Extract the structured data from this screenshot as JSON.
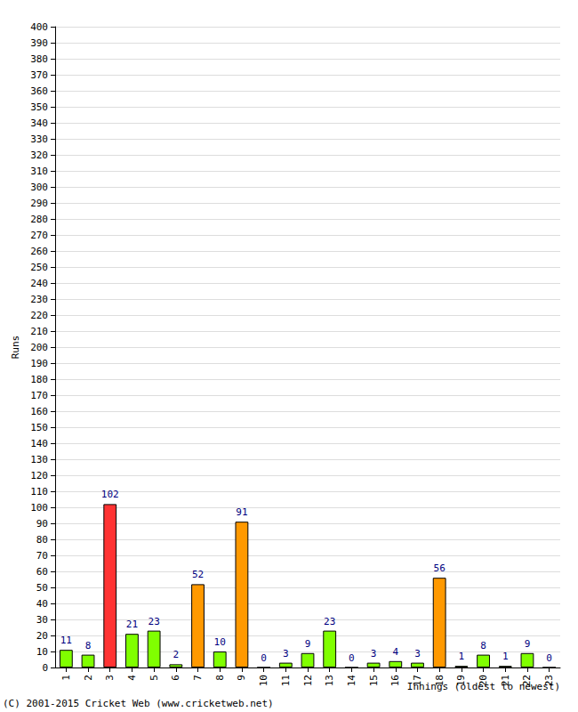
{
  "chart_data": {
    "type": "bar",
    "xlabel": "Innings (oldest to newest)",
    "ylabel": "Runs",
    "annotations": [
      "(C) 2001-2015 Cricket Web (www.cricketweb.net)"
    ],
    "categories": [
      "1",
      "2",
      "3",
      "4",
      "5",
      "6",
      "7",
      "8",
      "9",
      "10",
      "11",
      "12",
      "13",
      "14",
      "15",
      "16",
      "17",
      "18",
      "19",
      "20",
      "21",
      "22",
      "23"
    ],
    "values": [
      11,
      8,
      102,
      21,
      23,
      2,
      52,
      10,
      91,
      0,
      3,
      9,
      23,
      0,
      3,
      4,
      3,
      56,
      1,
      8,
      1,
      9,
      0
    ],
    "colors": [
      "#80ff00",
      "#80ff00",
      "#ff3333",
      "#80ff00",
      "#80ff00",
      "#80ff00",
      "#ff9900",
      "#80ff00",
      "#ff9900",
      "#80ff00",
      "#80ff00",
      "#80ff00",
      "#80ff00",
      "#80ff00",
      "#80ff00",
      "#80ff00",
      "#80ff00",
      "#ff9900",
      "#80ff00",
      "#80ff00",
      "#80ff00",
      "#80ff00",
      "#80ff00"
    ],
    "ylim": [
      0,
      400
    ],
    "yticks": [
      0,
      10,
      20,
      30,
      40,
      50,
      60,
      70,
      80,
      90,
      100,
      110,
      120,
      130,
      140,
      150,
      160,
      170,
      180,
      190,
      200,
      210,
      220,
      230,
      240,
      250,
      260,
      270,
      280,
      290,
      300,
      310,
      320,
      330,
      340,
      350,
      360,
      370,
      380,
      390,
      400
    ],
    "grid": true,
    "data_labels": true
  }
}
